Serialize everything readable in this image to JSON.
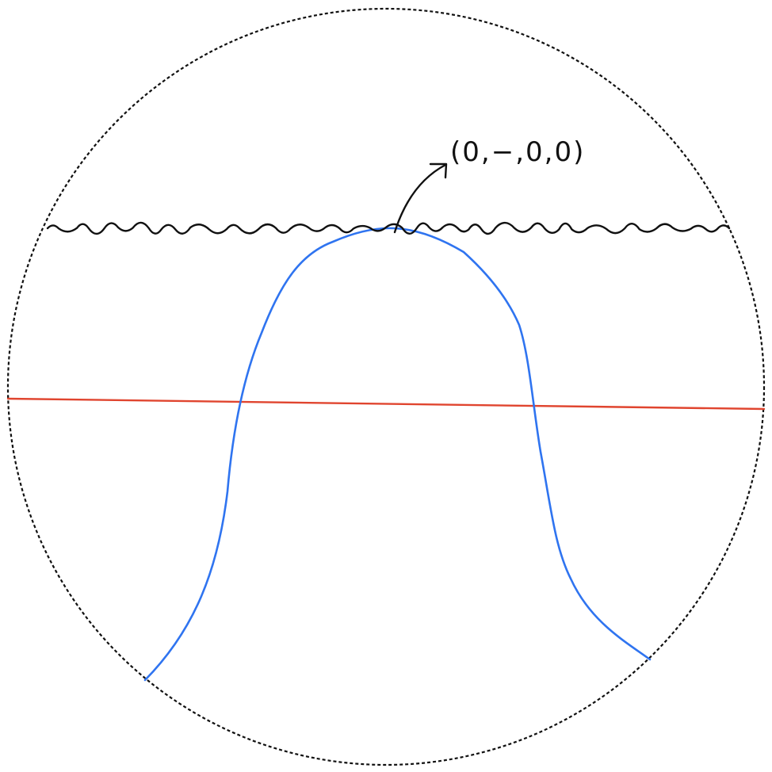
{
  "diagram": {
    "label": "(0,−,0,0)",
    "colors": {
      "boundary": "#111111",
      "wavy_line": "#111111",
      "straight_line": "#e0452f",
      "curve": "#2f74f0",
      "arrow": "#111111",
      "label": "#111111"
    }
  }
}
